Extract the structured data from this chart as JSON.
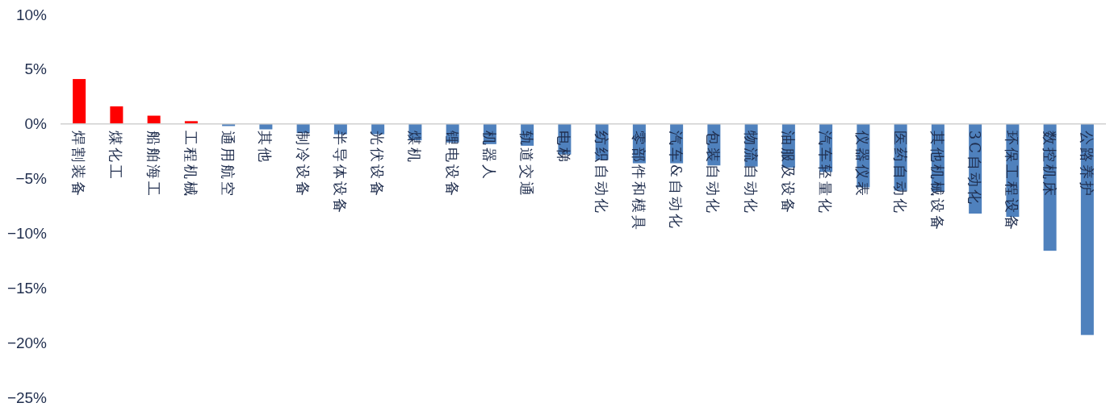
{
  "chart_data": {
    "type": "bar",
    "categories": [
      "焊割装备",
      "煤化工",
      "船舶海工",
      "工程机械",
      "通用航空",
      "其他",
      "制冷设备",
      "半导体设备",
      "光伏设备",
      "煤机",
      "锂电设备",
      "机器人",
      "轨道交通",
      "电梯",
      "纺织自动化",
      "零部件和模具",
      "汽车&自动化",
      "包装自动化",
      "物流自动化",
      "油服及设备",
      "汽车轻量化",
      "仪器仪表",
      "医药自动化",
      "其他机械设备",
      "3C自动化",
      "环保工程设备",
      "数控机床",
      "公路养护"
    ],
    "values": [
      4.1,
      1.6,
      0.75,
      0.25,
      -0.2,
      -0.5,
      -0.85,
      -0.95,
      -0.95,
      -1.5,
      -1.7,
      -1.85,
      -2.0,
      -2.8,
      -3.3,
      -3.6,
      -3.6,
      -3.8,
      -3.9,
      -4.0,
      -4.4,
      -5.8,
      -6.1,
      -6.2,
      -8.2,
      -8.5,
      -11.6,
      -19.3
    ],
    "colors": [
      "#ff0000",
      "#ff0000",
      "#ff0000",
      "#ff0000",
      "#4f81bd",
      "#4f81bd",
      "#4f81bd",
      "#4f81bd",
      "#4f81bd",
      "#4f81bd",
      "#4f81bd",
      "#4f81bd",
      "#4f81bd",
      "#4f81bd",
      "#4f81bd",
      "#4f81bd",
      "#4f81bd",
      "#4f81bd",
      "#4f81bd",
      "#4f81bd",
      "#4f81bd",
      "#4f81bd",
      "#4f81bd",
      "#4f81bd",
      "#4f81bd",
      "#4f81bd",
      "#4f81bd",
      "#4f81bd"
    ],
    "ylim": [
      -25,
      10
    ],
    "yticks": [
      {
        "value": 10,
        "label": "10%"
      },
      {
        "value": 5,
        "label": "5%"
      },
      {
        "value": 0,
        "label": "0%"
      },
      {
        "value": -5,
        "label": "−5%"
      },
      {
        "value": -10,
        "label": "−10%"
      },
      {
        "value": -15,
        "label": "−15%"
      },
      {
        "value": -20,
        "label": "−20%"
      },
      {
        "value": -25,
        "label": "−25%"
      }
    ],
    "grid": false
  }
}
